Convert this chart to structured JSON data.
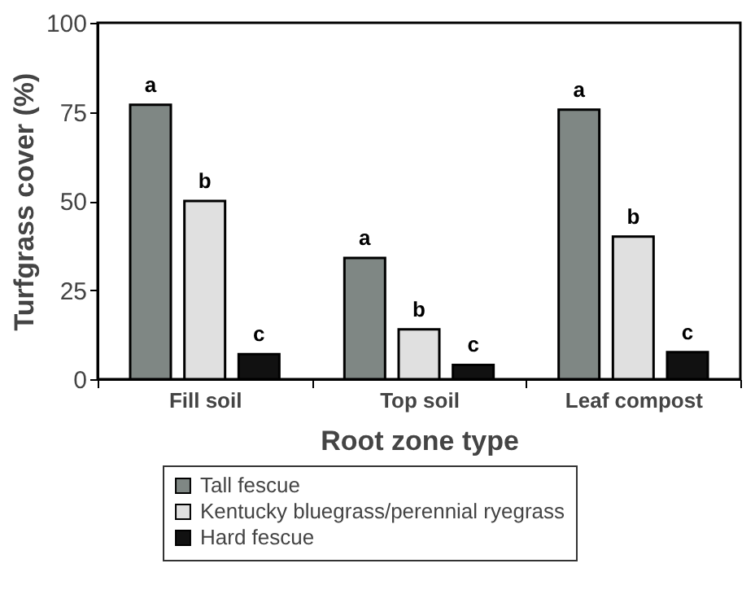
{
  "chart_data": {
    "type": "bar",
    "xlabel": "Root zone type",
    "ylabel": "Turfgrass cover (%)",
    "categories": [
      "Fill soil",
      "Top soil",
      "Leaf compost"
    ],
    "series": [
      {
        "name": "Tall fescue",
        "color": "#7f8784",
        "values": [
          77,
          34,
          75.6
        ],
        "value_labels": [
          "a",
          "a",
          "a"
        ]
      },
      {
        "name": "Kentucky bluegrass/perennial ryegrass",
        "color": "#e0e0e0",
        "values": [
          50,
          14,
          40
        ],
        "value_labels": [
          "b",
          "b",
          "b"
        ]
      },
      {
        "name": "Hard fescue",
        "color": "#111111",
        "values": [
          7,
          4,
          7.6
        ],
        "value_labels": [
          "c",
          "c",
          "c"
        ]
      }
    ],
    "ylim": [
      0,
      100
    ],
    "yticks": [
      0,
      25,
      50,
      75,
      100
    ],
    "grid": false,
    "legend": "bottom"
  }
}
